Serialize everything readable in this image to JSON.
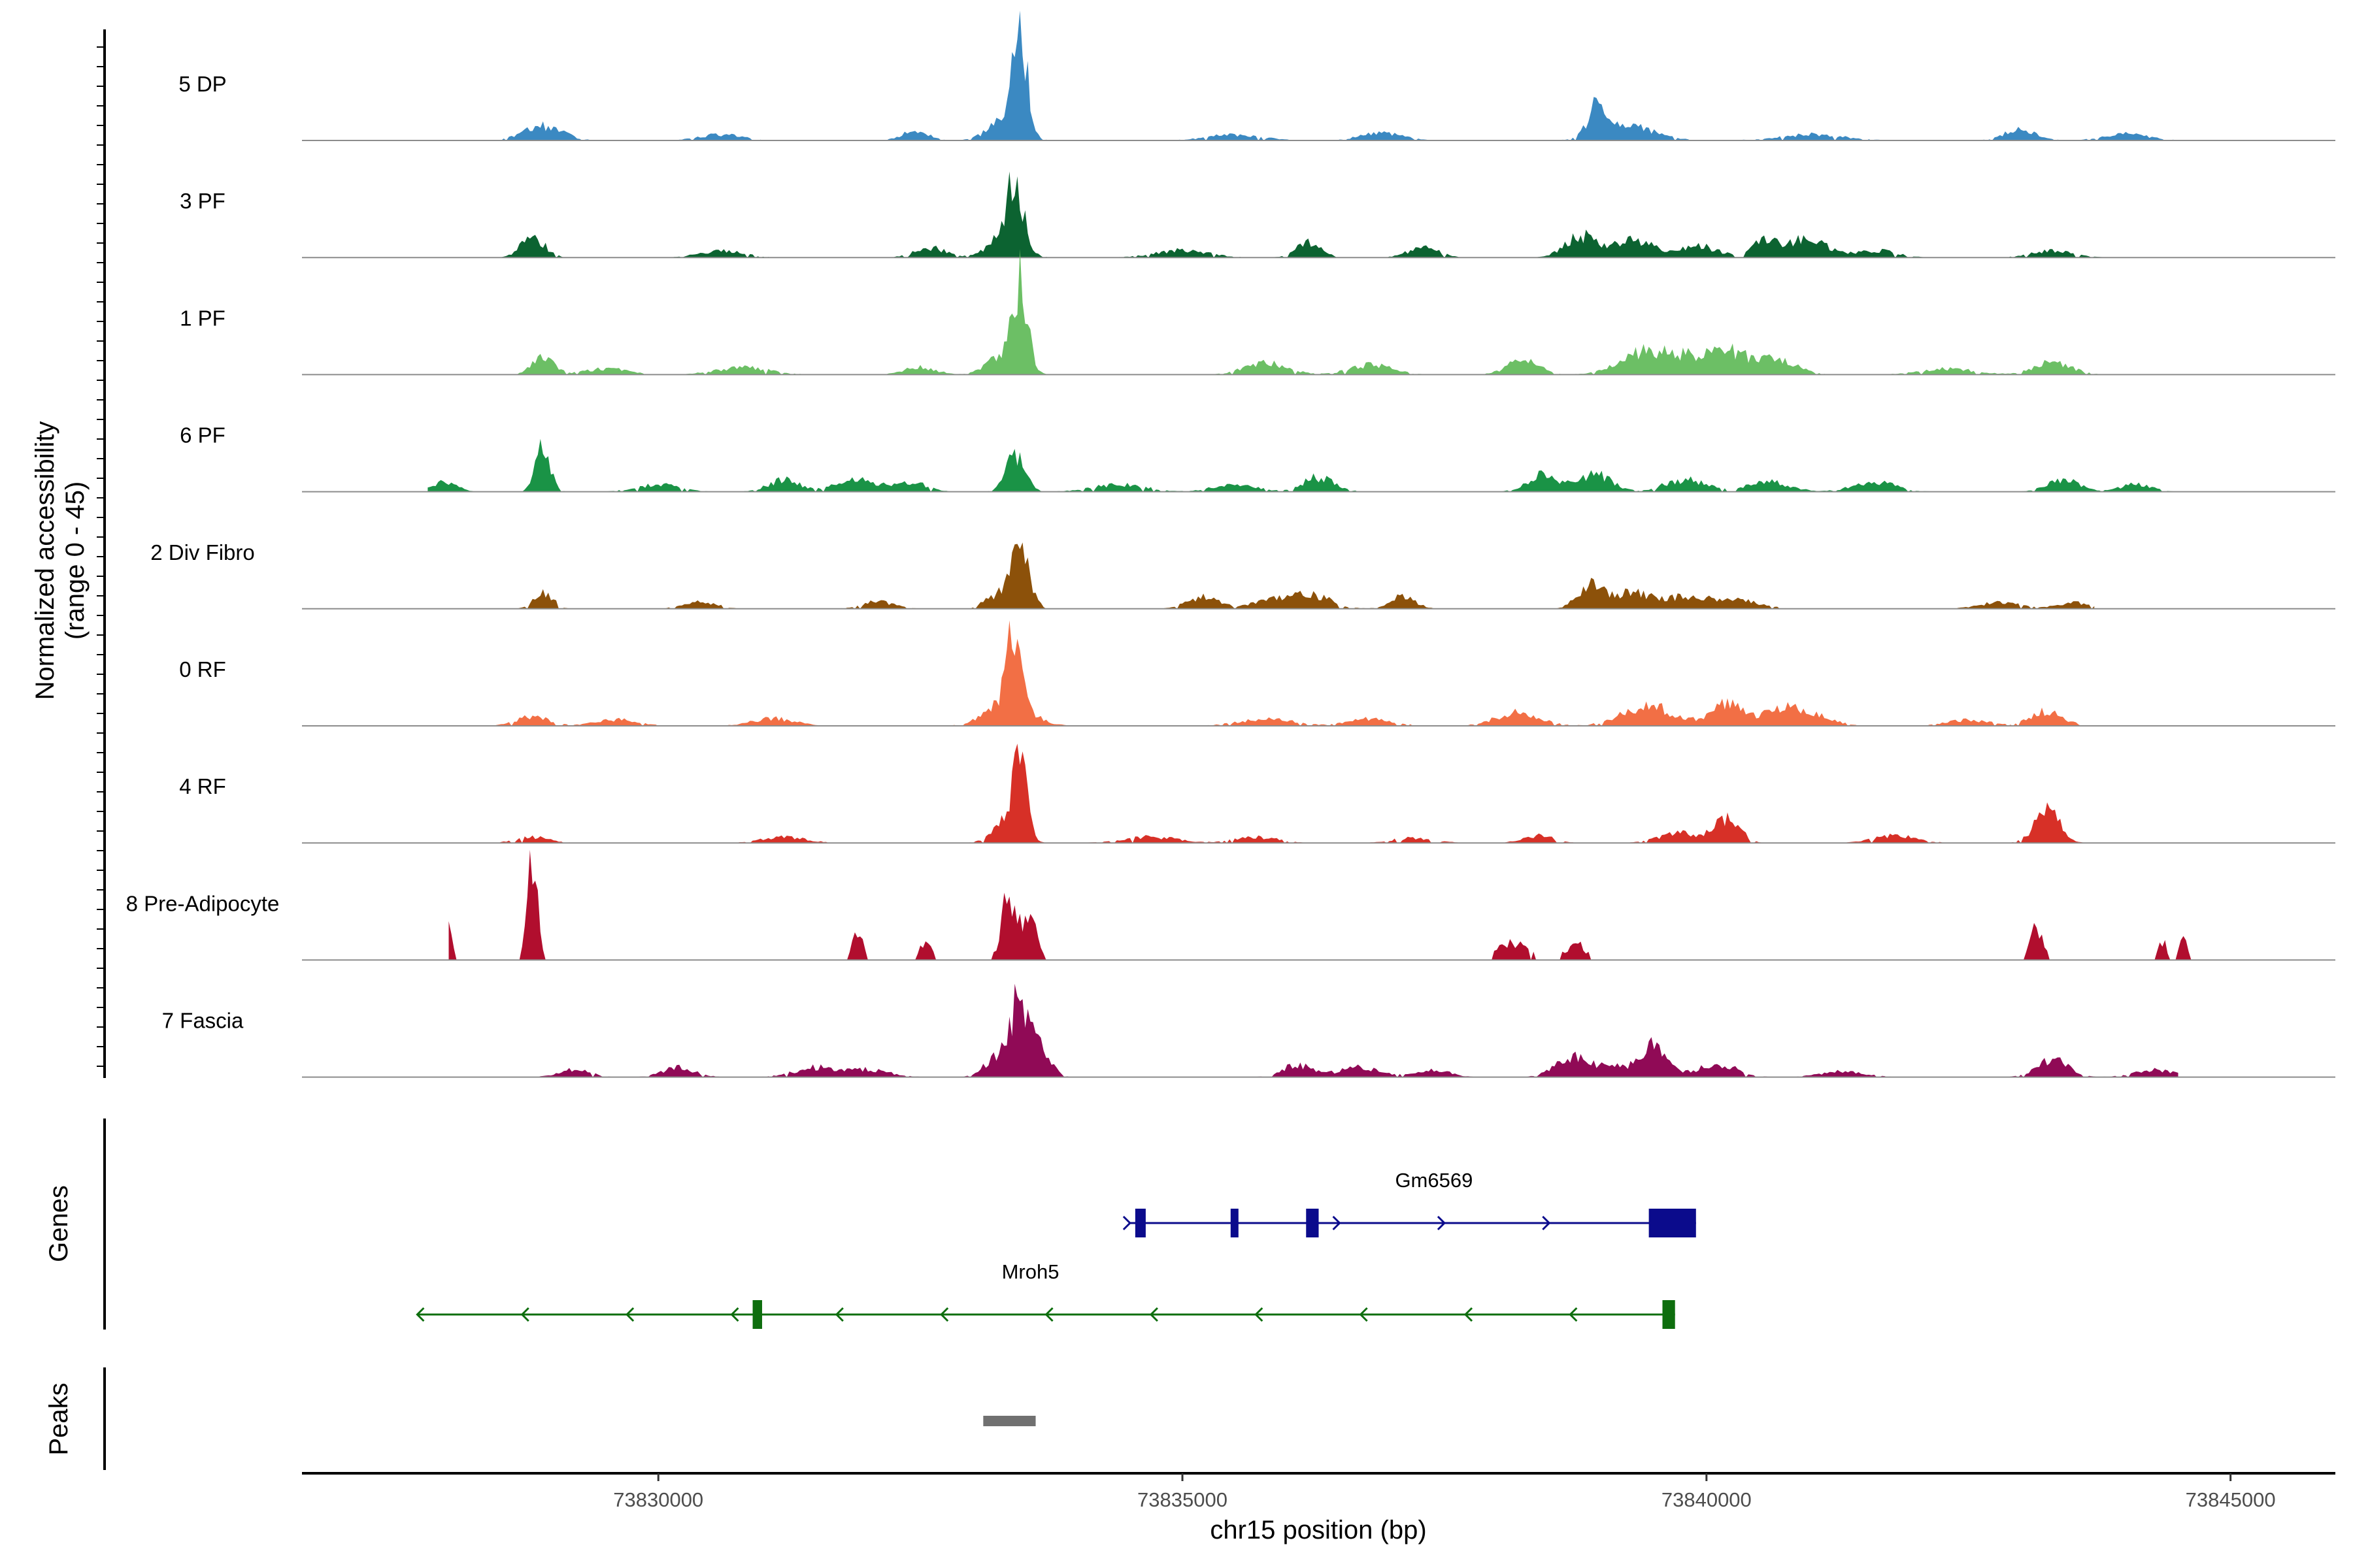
{
  "chart_data": {
    "type": "area",
    "title": "",
    "chromosome": "chr15",
    "xlabel": "chr15 position (bp)",
    "ylabel": "Normalized accessibility",
    "ylabel_range": "(range 0 - 45)",
    "xlim": [
      73826600,
      73846000
    ],
    "ylim": [
      0,
      45
    ],
    "x_ticks": [
      73830000,
      73835000,
      73840000,
      73845000
    ],
    "x_tick_labels": [
      "73830000",
      "73835000",
      "73840000",
      "73845000"
    ],
    "tracks": [
      {
        "name": "5 DP",
        "color": "#3b89c2",
        "start": 73828200,
        "end": 73844700,
        "peaks": [
          [
            73833450,
            42,
            70
          ],
          [
            73833300,
            8,
            150
          ],
          [
            73828900,
            6,
            180
          ],
          [
            73838950,
            12,
            80
          ],
          [
            73839250,
            6,
            250
          ],
          [
            73843000,
            5,
            150
          ],
          [
            73832450,
            4,
            120
          ],
          [
            73836900,
            3,
            200
          ],
          [
            73844000,
            3,
            200
          ],
          [
            73830600,
            2.5,
            200
          ],
          [
            73841000,
            2.5,
            300
          ],
          [
            73835500,
            2.5,
            250
          ]
        ]
      },
      {
        "name": "3 PF",
        "color": "#0c6331",
        "start": 73827700,
        "end": 73844600,
        "peaks": [
          [
            73833400,
            25,
            80
          ],
          [
            73833300,
            8,
            150
          ],
          [
            73828800,
            9,
            110
          ],
          [
            73838800,
            9,
            150
          ],
          [
            73839300,
            7,
            180
          ],
          [
            73840550,
            8,
            100
          ],
          [
            73840950,
            8,
            180
          ],
          [
            73836200,
            6,
            120
          ],
          [
            73837300,
            4,
            150
          ],
          [
            73839900,
            5,
            200
          ],
          [
            73832600,
            4,
            150
          ],
          [
            73843300,
            3,
            200
          ],
          [
            73830600,
            3,
            200
          ],
          [
            73835000,
            3,
            250
          ],
          [
            73841600,
            3,
            200
          ]
        ]
      },
      {
        "name": "1 PF",
        "color": "#6cbf65",
        "start": 73828000,
        "end": 73845000,
        "peaks": [
          [
            73833450,
            35,
            70
          ],
          [
            73833300,
            8,
            150
          ],
          [
            73828900,
            8,
            100
          ],
          [
            73839450,
            10,
            250
          ],
          [
            73840250,
            7,
            150
          ],
          [
            73840650,
            6,
            200
          ],
          [
            73839950,
            6,
            200
          ],
          [
            73838250,
            6,
            150
          ],
          [
            73835800,
            5,
            200
          ],
          [
            73843300,
            5,
            180
          ],
          [
            73836800,
            4,
            200
          ],
          [
            73830800,
            3,
            250
          ],
          [
            73829500,
            2.5,
            200
          ],
          [
            73842300,
            2.5,
            250
          ],
          [
            73832500,
            3,
            150
          ]
        ]
      },
      {
        "name": "6 PF",
        "color": "#1a9346",
        "start": 73827800,
        "end": 73844600,
        "peaks": [
          [
            73828900,
            18,
            70
          ],
          [
            73833400,
            17,
            90
          ],
          [
            73838450,
            7,
            150
          ],
          [
            73838950,
            7,
            150
          ],
          [
            73836300,
            6,
            150
          ],
          [
            73831900,
            5,
            200
          ],
          [
            73831200,
            5,
            150
          ],
          [
            73832400,
            4,
            150
          ],
          [
            73843400,
            5,
            150
          ],
          [
            73839800,
            5,
            200
          ],
          [
            73840600,
            4,
            200
          ],
          [
            73841600,
            4,
            200
          ],
          [
            73827950,
            4,
            120
          ],
          [
            73834400,
            3,
            250
          ],
          [
            73835500,
            3,
            200
          ],
          [
            73830000,
            3,
            200
          ],
          [
            73844100,
            3,
            150
          ]
        ]
      },
      {
        "name": "2 Div Fibro",
        "color": "#8c510a",
        "start": 73827800,
        "end": 73843700,
        "peaks": [
          [
            73833450,
            22,
            90
          ],
          [
            73833250,
            6,
            120
          ],
          [
            73828900,
            7,
            90
          ],
          [
            73838900,
            11,
            120
          ],
          [
            73839300,
            7,
            150
          ],
          [
            73839800,
            5,
            200
          ],
          [
            73840300,
            4,
            200
          ],
          [
            73835200,
            5,
            150
          ],
          [
            73836200,
            6,
            200
          ],
          [
            73837100,
            5,
            120
          ],
          [
            73835800,
            3,
            150
          ],
          [
            73830400,
            3,
            150
          ],
          [
            73832100,
            3,
            150
          ],
          [
            73842800,
            2.5,
            200
          ],
          [
            73843500,
            2.5,
            150
          ]
        ]
      },
      {
        "name": "0 RF",
        "color": "#f26f45",
        "start": 73827800,
        "end": 73845000,
        "peaks": [
          [
            73833400,
            30,
            70
          ],
          [
            73833350,
            10,
            200
          ],
          [
            73839450,
            8,
            250
          ],
          [
            73840200,
            9,
            150
          ],
          [
            73840700,
            6,
            180
          ],
          [
            73838200,
            6,
            200
          ],
          [
            73843250,
            6,
            150
          ],
          [
            73841000,
            4,
            200
          ],
          [
            73828800,
            4,
            150
          ],
          [
            73836800,
            3,
            200
          ],
          [
            73831100,
            3,
            200
          ],
          [
            73835800,
            3,
            250
          ],
          [
            73842500,
            2.5,
            200
          ],
          [
            73829600,
            2.5,
            200
          ]
        ]
      },
      {
        "name": "4 RF",
        "color": "#d73027",
        "start": 73828000,
        "end": 73844900,
        "peaks": [
          [
            73833450,
            30,
            70
          ],
          [
            73833300,
            8,
            120
          ],
          [
            73843250,
            13,
            120
          ],
          [
            73840200,
            10,
            120
          ],
          [
            73839750,
            4,
            200
          ],
          [
            73838400,
            3,
            150
          ],
          [
            73841800,
            3,
            200
          ],
          [
            73828800,
            2.5,
            150
          ],
          [
            73835700,
            2.5,
            200
          ],
          [
            73831200,
            2.5,
            200
          ],
          [
            73834700,
            2.5,
            250
          ],
          [
            73837200,
            2,
            200
          ]
        ]
      },
      {
        "name": "8 Pre-Adipocyte",
        "color": "#b10e2e",
        "start": 73828000,
        "end": 73844700,
        "peaks": [
          [
            73828800,
            40,
            50
          ],
          [
            73828000,
            14,
            40
          ],
          [
            73831900,
            13,
            50
          ],
          [
            73832550,
            8,
            50
          ],
          [
            73833350,
            28,
            70
          ],
          [
            73833550,
            18,
            60
          ],
          [
            73838150,
            7,
            150
          ],
          [
            73838750,
            7,
            90
          ],
          [
            73843150,
            13,
            60
          ],
          [
            73844350,
            8,
            40
          ],
          [
            73844550,
            8,
            40
          ]
        ]
      },
      {
        "name": "7 Fascia",
        "color": "#900a56",
        "start": 73828500,
        "end": 73844500,
        "peaks": [
          [
            73833450,
            30,
            80
          ],
          [
            73833250,
            10,
            120
          ],
          [
            73833650,
            12,
            90
          ],
          [
            73838700,
            8,
            150
          ],
          [
            73839500,
            12,
            120
          ],
          [
            73839100,
            5,
            200
          ],
          [
            73840100,
            5,
            200
          ],
          [
            73843300,
            7,
            150
          ],
          [
            73836100,
            5,
            150
          ],
          [
            73836700,
            4,
            200
          ],
          [
            73830200,
            4,
            150
          ],
          [
            73831500,
            4,
            200
          ],
          [
            73832000,
            3,
            200
          ],
          [
            73829200,
            3,
            150
          ],
          [
            73844300,
            3,
            200
          ],
          [
            73837400,
            3,
            150
          ],
          [
            73841300,
            2.5,
            200
          ]
        ]
      }
    ],
    "genes": [
      {
        "name": "Gm6569",
        "strand": "+",
        "color": "#0b0b8c",
        "start": 73834500,
        "end": 73839900,
        "exons": [
          [
            73834550,
            73834650
          ],
          [
            73835460,
            73835530
          ],
          [
            73836180,
            73836300
          ]
        ],
        "utr": [
          [
            73839450,
            73839900
          ]
        ],
        "arrows": [
          73834500,
          73836500,
          73837500,
          73838500
        ]
      },
      {
        "name": "Mroh5",
        "strand": "-",
        "color": "#0e6e0e",
        "start": 73827700,
        "end": 73839700,
        "exons": [
          [
            73830900,
            73830990
          ],
          [
            73839580,
            73839700
          ]
        ],
        "arrows": [
          73827700,
          73828700,
          73829700,
          73830700,
          73831700,
          73832700,
          73833700,
          73834700,
          73835700,
          73836700,
          73837700,
          73838700
        ]
      }
    ],
    "peaks_track": [
      [
        73833100,
        73833600
      ]
    ],
    "panel_labels": {
      "genes": "Genes",
      "peaks": "Peaks"
    }
  }
}
